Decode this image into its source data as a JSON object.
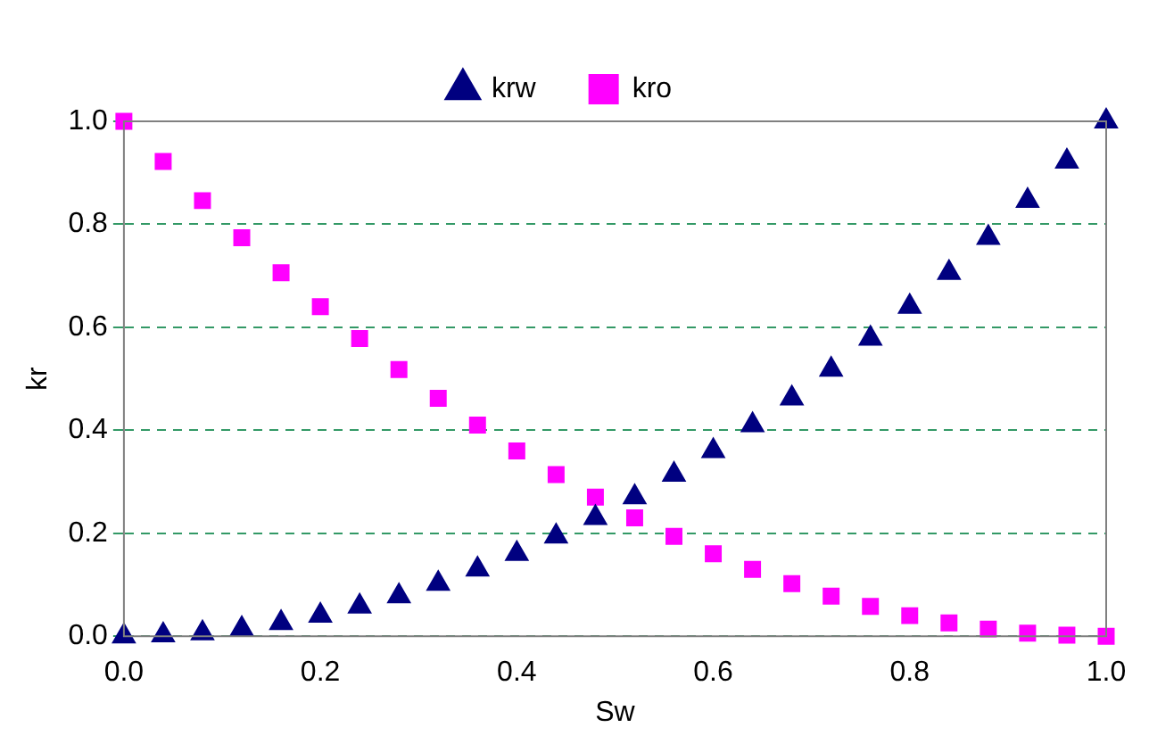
{
  "chart_data": {
    "type": "scatter",
    "xlabel": "Sw",
    "ylabel": "kr",
    "x": [
      0,
      0.04,
      0.08,
      0.12,
      0.16,
      0.2,
      0.24,
      0.28,
      0.32,
      0.36,
      0.4,
      0.44,
      0.48,
      0.52,
      0.56,
      0.6,
      0.64,
      0.68,
      0.72,
      0.76,
      0.8,
      0.84,
      0.88,
      0.92,
      0.96,
      1.0
    ],
    "series": [
      {
        "name": "krw",
        "color": "#000080",
        "marker": "triangle",
        "values": [
          0,
          0.002,
          0.006,
          0.014,
          0.026,
          0.04,
          0.058,
          0.078,
          0.102,
          0.13,
          0.16,
          0.194,
          0.23,
          0.27,
          0.314,
          0.36,
          0.41,
          0.462,
          0.518,
          0.578,
          0.64,
          0.706,
          0.774,
          0.846,
          0.922,
          1.0
        ]
      },
      {
        "name": "kro",
        "color": "#ff00ff",
        "marker": "square",
        "values": [
          1.0,
          0.922,
          0.846,
          0.774,
          0.706,
          0.64,
          0.578,
          0.518,
          0.462,
          0.41,
          0.36,
          0.314,
          0.27,
          0.23,
          0.194,
          0.16,
          0.13,
          0.102,
          0.078,
          0.058,
          0.04,
          0.026,
          0.014,
          0.006,
          0.002,
          0
        ]
      }
    ],
    "xlim": [
      0,
      1
    ],
    "xticks": [
      {
        "value": 0,
        "label": "0.0"
      },
      {
        "value": 0.2,
        "label": "0.2"
      },
      {
        "value": 0.4,
        "label": "0.4"
      },
      {
        "value": 0.6,
        "label": "0.6"
      },
      {
        "value": 0.8,
        "label": "0.8"
      },
      {
        "value": 1,
        "label": "1.0"
      }
    ],
    "ylim": [
      0,
      1
    ],
    "yticks": [
      {
        "value": 0,
        "label": "0.0"
      },
      {
        "value": 0.2,
        "label": "0.2"
      },
      {
        "value": 0.4,
        "label": "0.4"
      },
      {
        "value": 0.6,
        "label": "0.6"
      },
      {
        "value": 0.8,
        "label": "0.8"
      },
      {
        "value": 1,
        "label": "1.0"
      }
    ],
    "grid": "y",
    "legend": "top"
  }
}
